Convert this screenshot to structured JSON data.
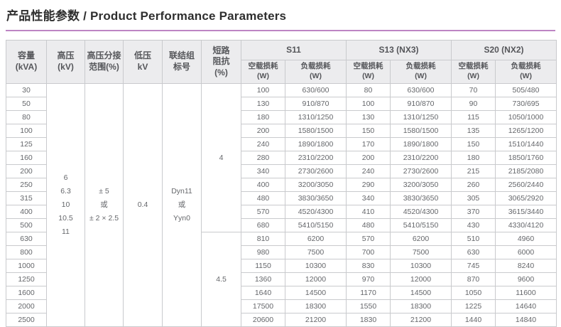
{
  "title": "产品性能参数 / Product Performance Parameters",
  "colors": {
    "accent_underline": "#bd85c4",
    "header_bg": "#ececee",
    "border": "#c9cacd"
  },
  "table": {
    "headers": {
      "capacity": "容量\n(kVA)",
      "high_voltage": "高压\n(kV)",
      "hv_tap_range": "高压分接\n范围(%)",
      "low_voltage": "低压\nkV",
      "vector_group": "联结组\n标号",
      "impedance": "短路\n阻抗\n(%)",
      "no_load_loss": "空载损耗\n(W)",
      "load_loss": "负载损耗\n(W)",
      "groups": [
        {
          "label": "S11"
        },
        {
          "label": "S13 (NX3)"
        },
        {
          "label": "S20 (NX2)"
        }
      ]
    },
    "merged_cells": {
      "high_voltage_values": "6\n6.3\n10\n10.5\n11",
      "hv_tap_range_values": "± 5\n或\n± 2 × 2.5",
      "low_voltage_value": "0.4",
      "vector_group_values": "Dyn11\n或\nYyn0",
      "impedance_top": "4",
      "impedance_top_rows": 11,
      "impedance_bottom": "4.5",
      "impedance_bottom_rows": 7
    },
    "rows": [
      {
        "kva": "30",
        "s11_nl": "100",
        "s11_l": "630/600",
        "s13_nl": "80",
        "s13_l": "630/600",
        "s20_nl": "70",
        "s20_l": "505/480"
      },
      {
        "kva": "50",
        "s11_nl": "130",
        "s11_l": "910/870",
        "s13_nl": "100",
        "s13_l": "910/870",
        "s20_nl": "90",
        "s20_l": "730/695"
      },
      {
        "kva": "80",
        "s11_nl": "180",
        "s11_l": "1310/1250",
        "s13_nl": "130",
        "s13_l": "1310/1250",
        "s20_nl": "115",
        "s20_l": "1050/1000"
      },
      {
        "kva": "100",
        "s11_nl": "200",
        "s11_l": "1580/1500",
        "s13_nl": "150",
        "s13_l": "1580/1500",
        "s20_nl": "135",
        "s20_l": "1265/1200"
      },
      {
        "kva": "125",
        "s11_nl": "240",
        "s11_l": "1890/1800",
        "s13_nl": "170",
        "s13_l": "1890/1800",
        "s20_nl": "150",
        "s20_l": "1510/1440"
      },
      {
        "kva": "160",
        "s11_nl": "280",
        "s11_l": "2310/2200",
        "s13_nl": "200",
        "s13_l": "2310/2200",
        "s20_nl": "180",
        "s20_l": "1850/1760"
      },
      {
        "kva": "200",
        "s11_nl": "340",
        "s11_l": "2730/2600",
        "s13_nl": "240",
        "s13_l": "2730/2600",
        "s20_nl": "215",
        "s20_l": "2185/2080"
      },
      {
        "kva": "250",
        "s11_nl": "400",
        "s11_l": "3200/3050",
        "s13_nl": "290",
        "s13_l": "3200/3050",
        "s20_nl": "260",
        "s20_l": "2560/2440"
      },
      {
        "kva": "315",
        "s11_nl": "480",
        "s11_l": "3830/3650",
        "s13_nl": "340",
        "s13_l": "3830/3650",
        "s20_nl": "305",
        "s20_l": "3065/2920"
      },
      {
        "kva": "400",
        "s11_nl": "570",
        "s11_l": "4520/4300",
        "s13_nl": "410",
        "s13_l": "4520/4300",
        "s20_nl": "370",
        "s20_l": "3615/3440"
      },
      {
        "kva": "500",
        "s11_nl": "680",
        "s11_l": "5410/5150",
        "s13_nl": "480",
        "s13_l": "5410/5150",
        "s20_nl": "430",
        "s20_l": "4330/4120"
      },
      {
        "kva": "630",
        "s11_nl": "810",
        "s11_l": "6200",
        "s13_nl": "570",
        "s13_l": "6200",
        "s20_nl": "510",
        "s20_l": "4960"
      },
      {
        "kva": "800",
        "s11_nl": "980",
        "s11_l": "7500",
        "s13_nl": "700",
        "s13_l": "7500",
        "s20_nl": "630",
        "s20_l": "6000"
      },
      {
        "kva": "1000",
        "s11_nl": "1150",
        "s11_l": "10300",
        "s13_nl": "830",
        "s13_l": "10300",
        "s20_nl": "745",
        "s20_l": "8240"
      },
      {
        "kva": "1250",
        "s11_nl": "1360",
        "s11_l": "12000",
        "s13_nl": "970",
        "s13_l": "12000",
        "s20_nl": "870",
        "s20_l": "9600"
      },
      {
        "kva": "1600",
        "s11_nl": "1640",
        "s11_l": "14500",
        "s13_nl": "1170",
        "s13_l": "14500",
        "s20_nl": "1050",
        "s20_l": "11600"
      },
      {
        "kva": "2000",
        "s11_nl": "17500",
        "s11_l": "18300",
        "s13_nl": "1550",
        "s13_l": "18300",
        "s20_nl": "1225",
        "s20_l": "14640"
      },
      {
        "kva": "2500",
        "s11_nl": "20600",
        "s11_l": "21200",
        "s13_nl": "1830",
        "s13_l": "21200",
        "s20_nl": "1440",
        "s20_l": "14840"
      }
    ]
  }
}
